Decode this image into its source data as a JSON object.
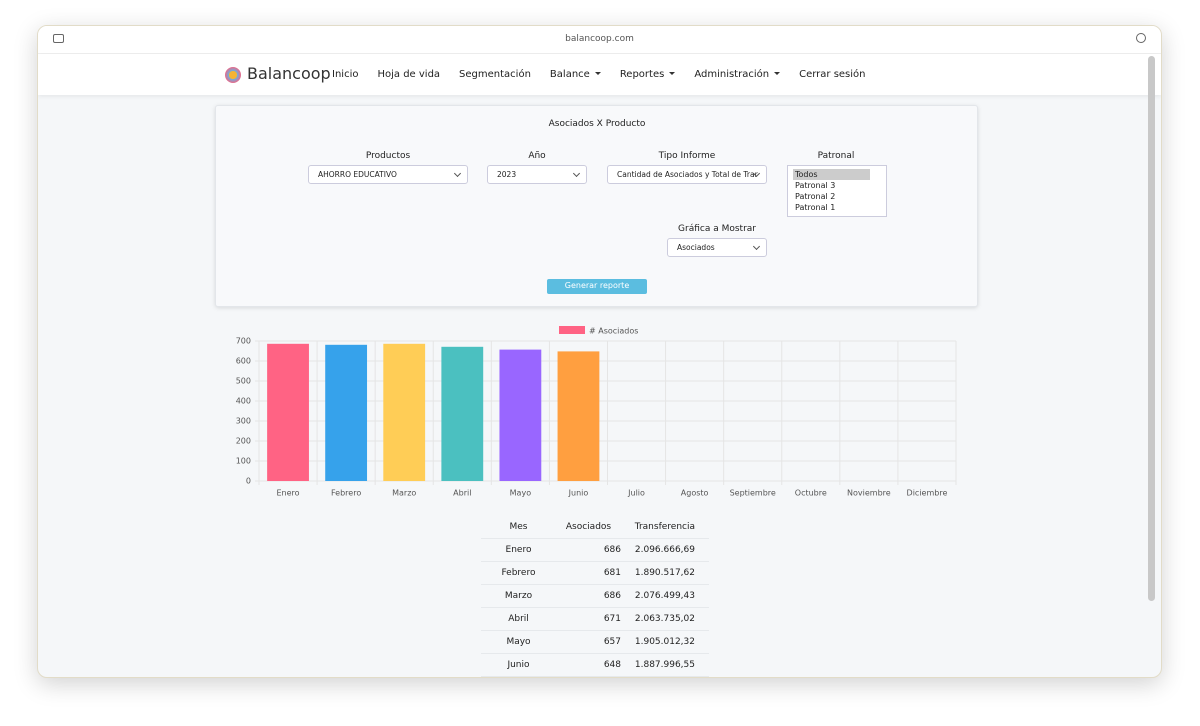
{
  "browser": {
    "url": "balancoop.com"
  },
  "nav": {
    "brand": "Balancoop",
    "items": [
      "Inicio",
      "Hoja de vida",
      "Segmentación",
      "Balance",
      "Reportes",
      "Administración",
      "Cerrar sesión"
    ]
  },
  "form": {
    "title": "Asociados X Producto",
    "fields": [
      {
        "label": "Productos",
        "value": "AHORRO EDUCATIVO"
      },
      {
        "label": "Año",
        "value": "2023"
      },
      {
        "label": "Tipo Informe",
        "value": "Cantidad de Asociados y Total de Trar"
      }
    ],
    "patronal": {
      "label": "Patronal",
      "options": [
        "Todos",
        "Patronal 3",
        "Patronal 2",
        "Patronal 1"
      ]
    },
    "grafica": {
      "label": "Gráfica a Mostrar",
      "value": "Asociados"
    },
    "button": "Generar reporte"
  },
  "chart_data": {
    "type": "bar",
    "categories": [
      "Enero",
      "Febrero",
      "Marzo",
      "Abril",
      "Mayo",
      "Junio",
      "Julio",
      "Agosto",
      "Septiembre",
      "Octubre",
      "Noviembre",
      "Diciembre"
    ],
    "series": [
      {
        "name": "# Asociados",
        "colors": [
          "#ff6384",
          "#36a2eb",
          "#ffcd56",
          "#4bc0c0",
          "#9966ff",
          "#ff9f40"
        ],
        "values": [
          686,
          681,
          686,
          671,
          657,
          648,
          null,
          null,
          null,
          null,
          null,
          null
        ]
      }
    ],
    "ylim": [
      0,
      700
    ],
    "yticks": [
      0,
      100,
      200,
      300,
      400,
      500,
      600,
      700
    ],
    "grid": true
  },
  "table": {
    "header": [
      "Mes",
      "Asociados",
      "Transferencia"
    ],
    "rows": [
      [
        "Enero",
        686,
        "2.096.666,69"
      ],
      [
        "Febrero",
        681,
        "1.890.517,62"
      ],
      [
        "Marzo",
        686,
        "2.076.499,43"
      ],
      [
        "Abril",
        671,
        "2.063.735,02"
      ],
      [
        "Mayo",
        657,
        "1.905.012,32"
      ],
      [
        "Junio",
        648,
        "1.887.996,55"
      ]
    ]
  }
}
